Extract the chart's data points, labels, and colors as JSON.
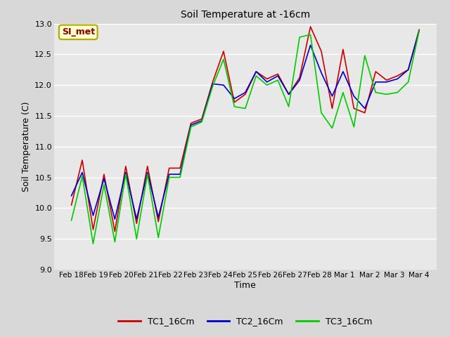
{
  "title": "Soil Temperature at -16cm",
  "xlabel": "Time",
  "ylabel": "Soil Temperature (C)",
  "ylim": [
    9.0,
    13.0
  ],
  "background_color": "#d8d8d8",
  "axes_bg_color": "#e8e8e8",
  "grid_color": "#ffffff",
  "line_colors": [
    "#cc0000",
    "#0000cc",
    "#00cc00"
  ],
  "line_labels": [
    "TC1_16Cm",
    "TC2_16Cm",
    "TC3_16Cm"
  ],
  "annotation_text": "SI_met",
  "annotation_bg": "#ffffcc",
  "annotation_border": "#aaaa00",
  "x_tick_labels": [
    "Feb 18",
    "Feb 19",
    "Feb 20",
    "Feb 21",
    "Feb 22",
    "Feb 23",
    "Feb 24",
    "Feb 25",
    "Feb 26",
    "Feb 27",
    "Feb 28",
    "Mar 1",
    "Mar 2",
    "Mar 3",
    "Mar 4"
  ],
  "tc1": [
    10.05,
    10.78,
    9.65,
    10.55,
    9.62,
    10.68,
    9.75,
    10.68,
    9.78,
    10.65,
    10.65,
    11.38,
    11.45,
    12.05,
    12.55,
    11.72,
    11.85,
    12.22,
    12.1,
    12.18,
    11.85,
    12.12,
    12.95,
    12.55,
    11.62,
    12.58,
    11.62,
    11.55,
    12.22,
    12.08,
    12.15,
    12.25,
    12.9
  ],
  "tc2": [
    10.2,
    10.58,
    9.88,
    10.48,
    9.82,
    10.58,
    9.82,
    10.58,
    9.85,
    10.55,
    10.55,
    11.35,
    11.42,
    12.02,
    12.0,
    11.78,
    11.88,
    12.22,
    12.05,
    12.15,
    11.85,
    12.08,
    12.65,
    12.2,
    11.82,
    12.22,
    11.82,
    11.62,
    12.05,
    12.05,
    12.1,
    12.25,
    12.88
  ],
  "tc3": [
    9.8,
    10.52,
    9.42,
    10.38,
    9.45,
    10.55,
    9.5,
    10.55,
    9.52,
    10.5,
    10.5,
    11.32,
    11.4,
    11.98,
    12.42,
    11.65,
    11.62,
    12.15,
    12.0,
    12.08,
    11.65,
    12.78,
    12.82,
    11.55,
    11.3,
    11.88,
    11.32,
    12.48,
    11.88,
    11.85,
    11.88,
    12.05,
    12.88
  ]
}
